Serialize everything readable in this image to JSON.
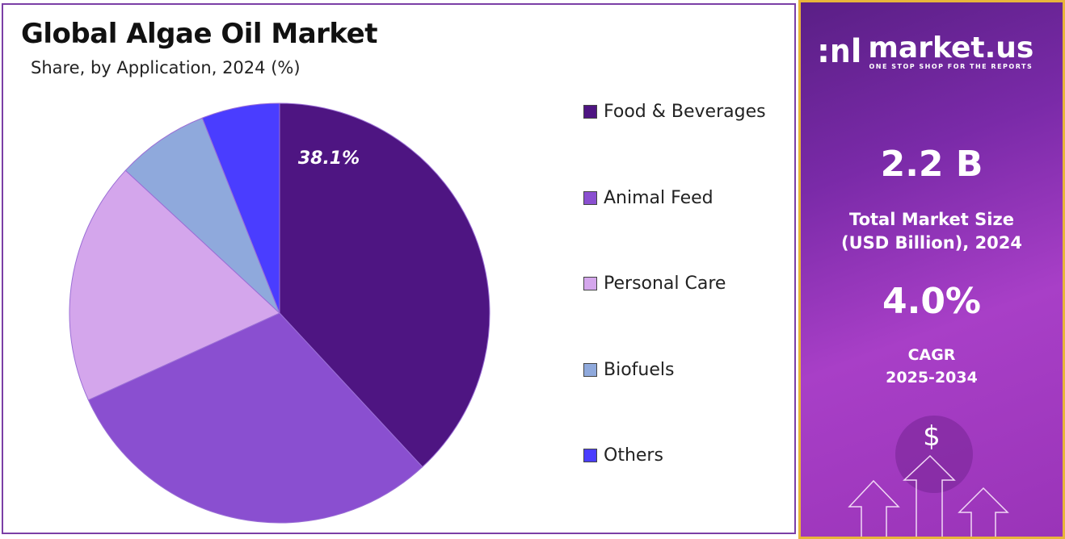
{
  "chart_data": {
    "type": "pie",
    "title": "Global Algae Oil Market",
    "subtitle": "Share, by Application, 2024 (%)",
    "categories": [
      "Food & Beverages",
      "Animal Feed",
      "Personal Care",
      "Biofuels",
      "Others"
    ],
    "values": [
      38.1,
      30.1,
      18.7,
      7.1,
      6.0
    ],
    "colors": [
      "#4e1582",
      "#8a4fd0",
      "#d4a6ec",
      "#8fa9dc",
      "#4a3dff"
    ],
    "data_labels": [
      "38.1%"
    ],
    "legend_position": "right"
  },
  "panel": {
    "logo_name": "market.us",
    "logo_tagline": "ONE STOP SHOP FOR THE REPORTS",
    "market_size": "2.2 B",
    "market_size_label_1": "Total Market Size",
    "market_size_label_2": "(USD Billion), 2024",
    "cagr": "4.0%",
    "cagr_label_1": "CAGR",
    "cagr_label_2": "2025-2034",
    "dollar_icon": "$"
  }
}
